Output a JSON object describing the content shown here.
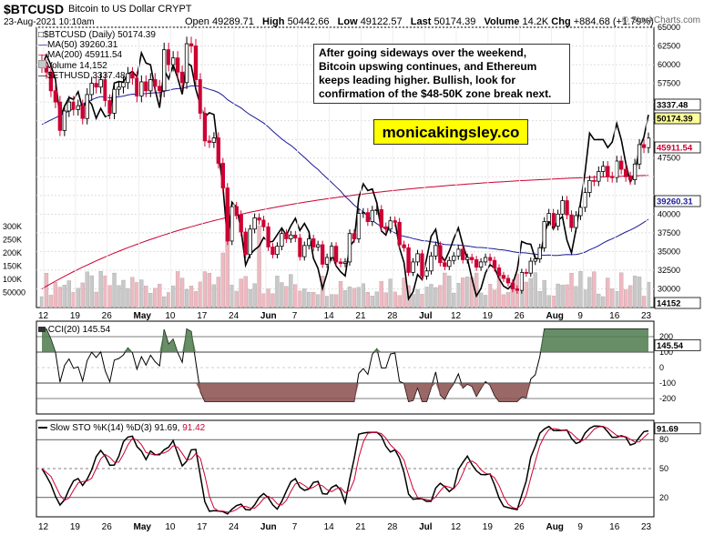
{
  "header": {
    "symbol": "$BTCUSD",
    "name": "Bitcoin to US Dollar  CRYPT",
    "date": "23-Aug-2021 10:10am",
    "open_label": "Open",
    "open": "49289.71",
    "high_label": "High",
    "high": "50442.66",
    "low_label": "Low",
    "low": "49122.57",
    "last_label": "Last",
    "last": "50174.39",
    "volume_label": "Volume",
    "volume": "14.2K",
    "chg_label": "Chg",
    "chg": "+884.68 (+1.79%)",
    "watermark": "© StockCharts.com"
  },
  "annotation": "After going sideways over the weekend, Bitcoin upswing continues, and Ethereum keeps leading higher. Bullish, look for confirmation of the $48-50K zone break next.",
  "site_label": "monicakingsley.co",
  "legend": {
    "main": "$BTCUSD (Daily) 50174.39",
    "ma50": "MA(50) 39260.31",
    "ma200": "MA(200) 45911.54",
    "volume": "Volume 14,152",
    "eth": "$ETHUSD 3337.48"
  },
  "colors": {
    "up": "#000000",
    "down": "#cc0033",
    "ma50": "#1a1a99",
    "ma200": "#cc0033",
    "cci_fill_pos": "#4d7a4d",
    "cci_fill_neg": "#8a4d4d",
    "volume": "#c8c8c8",
    "volume_down": "#f0b8c0",
    "last_box": "#ffff99"
  },
  "chart_data": [
    {
      "type": "candlestick",
      "panel": "price",
      "title": "$BTCUSD (Daily) 50174.39",
      "ylim": [
        27500,
        65000
      ],
      "y_ticks": [
        65000,
        62500,
        60000,
        57500,
        55000,
        52500,
        50000,
        47500,
        45000,
        42500,
        40000,
        37500,
        35000,
        32500,
        30000
      ],
      "y_tick_labels": [
        "65000",
        "62500",
        "60000",
        "57500",
        "55000",
        "52500",
        "",
        "47500",
        "",
        "",
        "40000",
        "37500",
        "35000",
        "32500",
        "30000"
      ],
      "x_tick_labels": [
        "12",
        "19",
        "26",
        "May",
        "10",
        "17",
        "24",
        "Jun",
        "7",
        "14",
        "21",
        "28",
        "Jul",
        "12",
        "19",
        "26",
        "Aug",
        "9",
        "16",
        "23"
      ],
      "last_labels": {
        "eth": "3337.48",
        "btc": "50174.39",
        "ma200": "45911.54",
        "ma50": "39260.31",
        "volume": "14152"
      },
      "volume_axis_labels": [
        "300K",
        "250K",
        "200K",
        "150K",
        "100K",
        "50000"
      ],
      "closes": [
        59800,
        59000,
        56500,
        55000,
        51200,
        53800,
        55000,
        54000,
        54500,
        52800,
        56000,
        57500,
        57000,
        58000,
        55200,
        53500,
        56700,
        57000,
        57600,
        58800,
        58200,
        55800,
        57700,
        56500,
        58000,
        57100,
        56500,
        62000,
        60000,
        60900,
        59000,
        57600,
        62800,
        62500,
        58000,
        53500,
        49800,
        49600,
        50200,
        46800,
        43500,
        36400,
        41000,
        39900,
        37600,
        34600,
        38000,
        39500,
        39200,
        38300,
        35600,
        34600,
        35700,
        37400,
        36700,
        37200,
        36800,
        34300,
        35800,
        36700,
        35600,
        35900,
        33300,
        34200,
        35700,
        33600,
        33400,
        33600,
        37400,
        36700,
        40100,
        40200,
        39000,
        40500,
        40600,
        38300,
        38000,
        39100,
        38900,
        35900,
        35500,
        32200,
        33600,
        34700,
        31700,
        32400,
        34400,
        35800,
        33500,
        33000,
        33800,
        34400,
        35300,
        33900,
        34200,
        33900,
        32900,
        33600,
        34200,
        33800,
        32800,
        31800,
        31400,
        30800,
        30000,
        29800,
        32200,
        32100,
        33700,
        34000,
        35500,
        39000,
        40100,
        38400,
        40000,
        41800,
        39900,
        38200,
        39800,
        40900,
        42900,
        44500,
        44400,
        45700,
        46400,
        45000,
        44900,
        47100,
        46000,
        45000,
        44600,
        46700,
        49300,
        48900,
        50174
      ]
    },
    {
      "type": "line",
      "panel": "cci",
      "title": "CCI(20) 145.54",
      "ylim": [
        -300,
        300
      ],
      "y_ticks": [
        200,
        100,
        0,
        -100,
        -200
      ],
      "last_label": "145.54"
    },
    {
      "type": "line",
      "panel": "stochastic",
      "title": "Slow STO %K(14) %D(3) 91.69, 91.42",
      "title_k": "Slow STO %K(14) %D(3) 91.69,",
      "title_d": "91.42",
      "ylim": [
        0,
        100
      ],
      "y_ticks": [
        80,
        50,
        20
      ],
      "last_label": "91.69"
    }
  ]
}
